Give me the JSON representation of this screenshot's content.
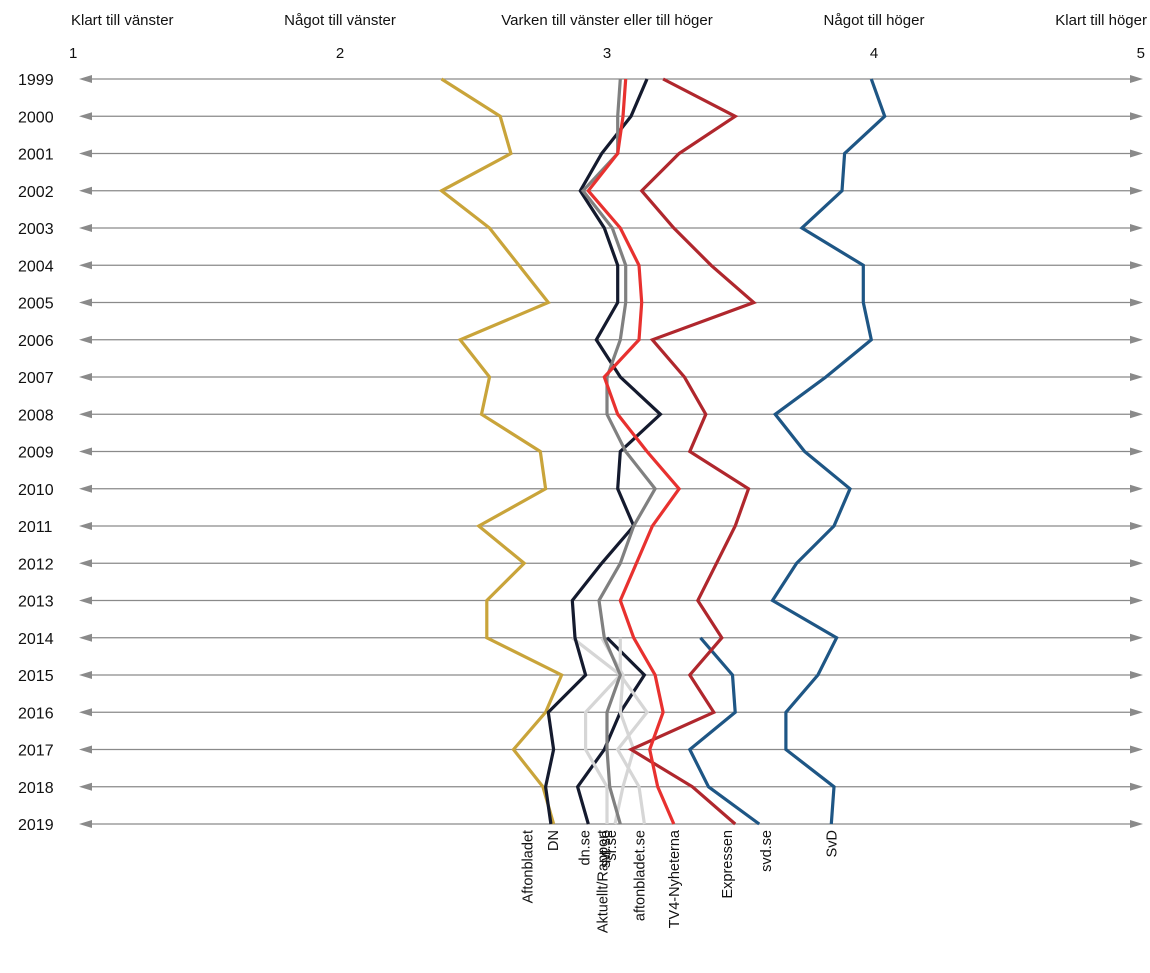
{
  "chart_data": {
    "type": "line",
    "orientation": "vertical-time",
    "scale": {
      "min": 1,
      "max": 5,
      "ticks": [
        {
          "value": 1,
          "label": "1",
          "caption": "Klart till vänster"
        },
        {
          "value": 2,
          "label": "2",
          "caption": "Något till vänster"
        },
        {
          "value": 3,
          "label": "3",
          "caption": "Varken till vänster eller till höger"
        },
        {
          "value": 4,
          "label": "4",
          "caption": "Något till höger"
        },
        {
          "value": 5,
          "label": "5",
          "caption": "Klart till höger"
        }
      ]
    },
    "years": [
      "1999",
      "2000",
      "2001",
      "2002",
      "2003",
      "2004",
      "2005",
      "2006",
      "2007",
      "2008",
      "2009",
      "2010",
      "2011",
      "2012",
      "2013",
      "2014",
      "2015",
      "2016",
      "2017",
      "2018",
      "2019"
    ],
    "grid": true,
    "series": [
      {
        "name": "Aftonbladet",
        "color": "#c9a43a",
        "start_year": "1999",
        "values": [
          2.38,
          2.6,
          2.64,
          2.38,
          2.56,
          2.67,
          2.78,
          2.45,
          2.56,
          2.53,
          2.75,
          2.77,
          2.52,
          2.69,
          2.55,
          2.55,
          2.83,
          2.77,
          2.65,
          2.76,
          2.8
        ]
      },
      {
        "name": "DN",
        "color": "#141a2e",
        "start_year": "1999",
        "values": [
          3.15,
          3.09,
          2.98,
          2.9,
          2.99,
          3.04,
          3.04,
          2.96,
          3.05,
          3.2,
          3.05,
          3.04,
          3.1,
          2.98,
          2.87,
          2.88,
          2.92,
          2.78,
          2.8,
          2.77,
          2.79
        ]
      },
      {
        "name": "Expressen",
        "color": "#b0272d",
        "start_year": "1999",
        "values": [
          3.21,
          3.48,
          3.27,
          3.13,
          3.25,
          3.39,
          3.55,
          3.17,
          3.29,
          3.37,
          3.31,
          3.53,
          3.48,
          3.41,
          3.34,
          3.43,
          3.31,
          3.4,
          3.09,
          3.32,
          3.48
        ]
      },
      {
        "name": "SvD",
        "color": "#1e5685",
        "start_year": "1999",
        "values": [
          3.99,
          4.04,
          3.89,
          3.88,
          3.73,
          3.96,
          3.96,
          3.99,
          3.82,
          3.63,
          3.74,
          3.91,
          3.85,
          3.71,
          3.62,
          3.86,
          3.79,
          3.67,
          3.67,
          3.85,
          3.84
        ]
      },
      {
        "name": "Aktuellt/Rapport",
        "color": "#808080",
        "start_year": "1999",
        "values": [
          3.05,
          3.04,
          3.04,
          2.91,
          3.02,
          3.07,
          3.07,
          3.05,
          3.0,
          3.0,
          3.07,
          3.18,
          3.1,
          3.05,
          2.97,
          2.99,
          3.05,
          3.0,
          3.0,
          3.01,
          3.05
        ]
      },
      {
        "name": "TV4-Nyheterna",
        "color": "#e8312f",
        "start_year": "1999",
        "values": [
          3.07,
          3.06,
          3.04,
          2.93,
          3.05,
          3.12,
          3.13,
          3.12,
          2.99,
          3.04,
          3.15,
          3.27,
          3.17,
          3.11,
          3.05,
          3.1,
          3.18,
          3.21,
          3.16,
          3.19,
          3.25
        ]
      },
      {
        "name": "dn.se",
        "color": "#141a2e",
        "start_year": "2014",
        "values": [
          3.0,
          3.14,
          3.05,
          2.99,
          2.89,
          2.93
        ]
      },
      {
        "name": "sr.se",
        "color": "#d6d6d6",
        "start_year": "2014",
        "values": [
          2.87,
          3.05,
          2.92,
          2.92,
          3.0,
          3.0
        ]
      },
      {
        "name": "svt.se",
        "color": "#d6d6d6",
        "start_year": "2014",
        "values": [
          2.98,
          3.06,
          3.05,
          3.1,
          3.06,
          3.03
        ]
      },
      {
        "name": "aftonbladet.se",
        "color": "#d6d6d6",
        "start_year": "2014",
        "values": [
          3.05,
          3.05,
          3.15,
          3.04,
          3.12,
          3.14
        ]
      },
      {
        "name": "svd.se",
        "color": "#1e5685",
        "start_year": "2014",
        "values": [
          3.35,
          3.47,
          3.48,
          3.31,
          3.38,
          3.57
        ]
      }
    ]
  }
}
